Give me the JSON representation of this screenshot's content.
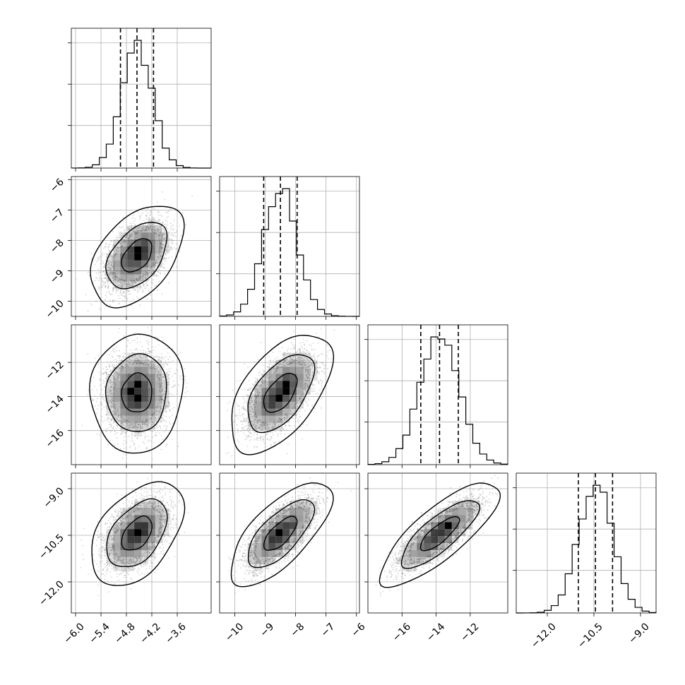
{
  "chart_data": {
    "type": "corner",
    "title": "",
    "grid": true,
    "colors": {
      "line": "#000000",
      "grid": "#b0b0b0",
      "density": "#000000",
      "scatter": "#888888"
    },
    "params": [
      {
        "range": [
          -6.1,
          -2.8
        ],
        "ticks": [
          -6.0,
          -5.4,
          -4.8,
          -4.2,
          -3.6
        ],
        "tick_labels": [
          "−6.0",
          "−5.4",
          "−4.8",
          "−4.2",
          "−3.6"
        ],
        "mean": -4.55,
        "sigma": 0.36,
        "quantiles": [
          -4.94,
          -4.55,
          -4.16
        ]
      },
      {
        "range": [
          -10.5,
          -5.9
        ],
        "ticks": [
          -10,
          -9,
          -8,
          -7,
          -6
        ],
        "tick_labels": [
          "−10",
          "−9",
          "−8",
          "−7",
          "−6"
        ],
        "mean": -8.5,
        "sigma": 0.55,
        "quantiles": [
          -9.05,
          -8.5,
          -7.95
        ]
      },
      {
        "range": [
          -18.0,
          -9.8
        ],
        "ticks": [
          -16,
          -14,
          -12
        ],
        "tick_labels": [
          "−16",
          "−14",
          "−12"
        ],
        "mean": -13.8,
        "sigma": 1.15,
        "quantiles": [
          -14.9,
          -13.8,
          -12.7
        ]
      },
      {
        "range": [
          -13.0,
          -8.5
        ],
        "ticks": [
          -12.0,
          -10.5,
          -9.0
        ],
        "tick_labels": [
          "−12.0",
          "−10.5",
          "−9.0"
        ],
        "mean": -10.45,
        "sigma": 0.55,
        "quantiles": [
          -11.0,
          -10.45,
          -9.9
        ]
      }
    ],
    "correlations": {
      "1,0": 0.45,
      "2,0": 0.05,
      "2,1": 0.55,
      "3,0": 0.45,
      "3,1": 0.7,
      "3,2": 0.8
    },
    "histogram_bins": 20,
    "contour_levels": [
      0.39,
      0.86,
      0.99
    ]
  }
}
